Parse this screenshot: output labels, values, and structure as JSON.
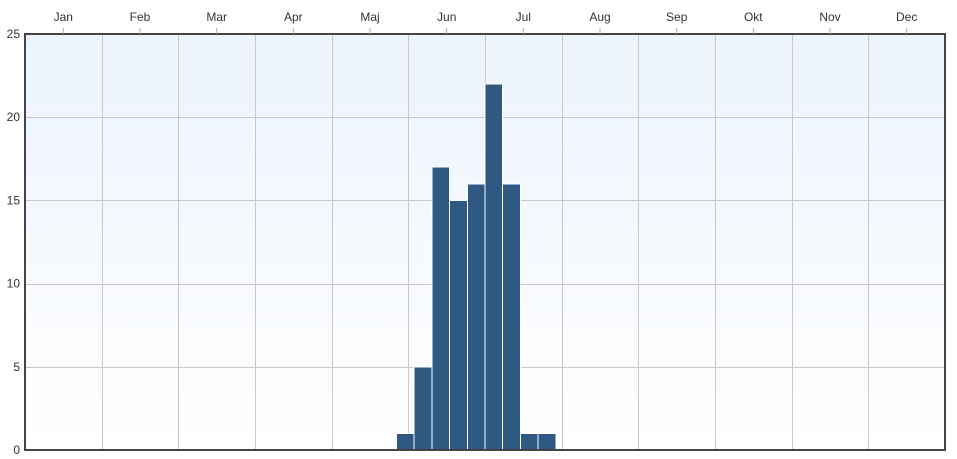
{
  "chart_data": {
    "type": "bar",
    "months": [
      "Jan",
      "Feb",
      "Mar",
      "Apr",
      "Maj",
      "Jun",
      "Jul",
      "Aug",
      "Sep",
      "Okt",
      "Nov",
      "Dec"
    ],
    "y_ticks": [
      0,
      5,
      10,
      15,
      20,
      25
    ],
    "ylim": [
      0,
      25
    ],
    "x_axis_position": "top",
    "grid": true,
    "bin_unit": "week",
    "weeks_per_year": 52,
    "series": [
      {
        "color": "#2f5982",
        "bins": [
          {
            "week": 22,
            "value": 1
          },
          {
            "week": 23,
            "value": 5
          },
          {
            "week": 24,
            "value": 17
          },
          {
            "week": 25,
            "value": 15
          },
          {
            "week": 26,
            "value": 16
          },
          {
            "week": 27,
            "value": 22
          },
          {
            "week": 28,
            "value": 16
          },
          {
            "week": 29,
            "value": 1
          },
          {
            "week": 30,
            "value": 1
          }
        ]
      }
    ],
    "background_color": "#eef4fd"
  }
}
